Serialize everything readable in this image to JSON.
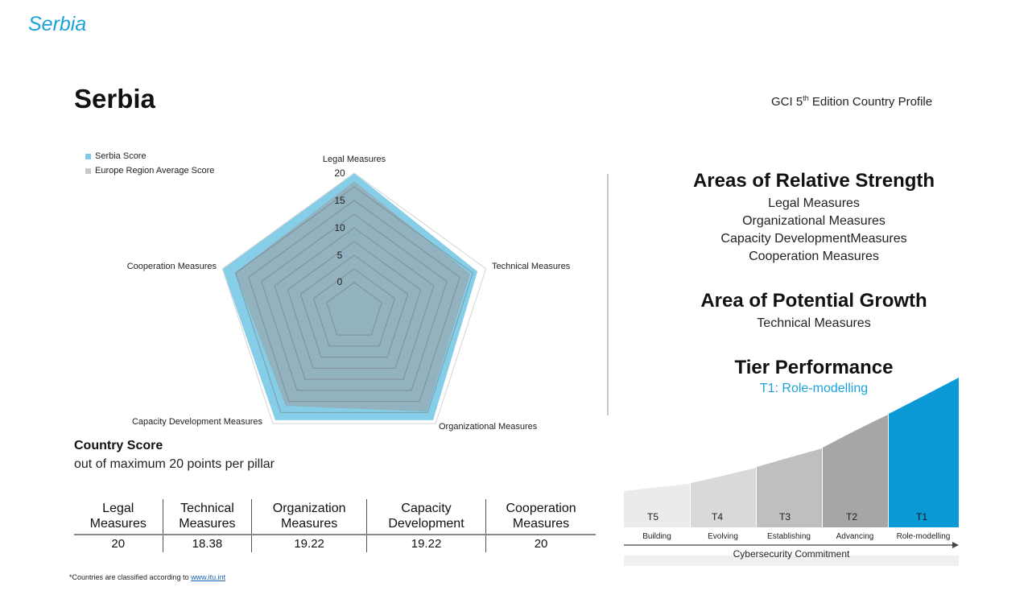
{
  "header": {
    "top_title": "Serbia",
    "page_title": "Serbia",
    "edition_prefix": "GCI 5",
    "edition_sup": "th",
    "edition_suffix": " Edition Country Profile"
  },
  "legend": {
    "serbia": "Serbia Score",
    "europe": "Europe Region Average Score"
  },
  "colors": {
    "accent": "#1aa3d9",
    "serbia_fill": "#7fcbe7",
    "europe_fill": "#9a9a9a",
    "tier_highlight": "#0b9ad5"
  },
  "chart_data": {
    "type": "radar",
    "axes": [
      "Legal Measures",
      "Technical Measures",
      "Organizational Measures",
      "Capacity Development Measures",
      "Cooperation Measures"
    ],
    "ticks": [
      0,
      5,
      10,
      15,
      20
    ],
    "range": [
      0,
      20
    ],
    "series": [
      {
        "name": "Serbia Score",
        "values": [
          20,
          18.38,
          19.22,
          19.22,
          20
        ]
      },
      {
        "name": "Europe Region Average Score",
        "values": [
          18.5,
          17,
          17.3,
          16,
          17.6
        ]
      }
    ]
  },
  "strengths": {
    "title": "Areas of Relative Strength",
    "items": [
      "Legal Measures",
      "Organizational Measures",
      "Capacity DevelopmentMeasures",
      "Cooperation Measures"
    ]
  },
  "growth": {
    "title": "Area of Potential Growth",
    "items": [
      "Technical Measures"
    ]
  },
  "tier": {
    "title": "Tier Performance",
    "subtitle": "T1: Role-modelling",
    "levels": [
      {
        "code": "T5",
        "label": "Building",
        "color": "#ebebeb"
      },
      {
        "code": "T4",
        "label": "Evolving",
        "color": "#d9d9d9"
      },
      {
        "code": "T3",
        "label": "Establishing",
        "color": "#bfbfbf"
      },
      {
        "code": "T2",
        "label": "Advancing",
        "color": "#a6a6a6"
      },
      {
        "code": "T1",
        "label": "Role-modelling",
        "color": "#0b9ad5"
      }
    ],
    "axis_label": "Cybersecurity Commitment"
  },
  "country_score": {
    "title": "Country Score",
    "subtitle": "out of maximum 20 points per pillar",
    "headers": [
      [
        "Legal",
        "Measures"
      ],
      [
        "Technical",
        "Measures"
      ],
      [
        "Organization",
        "Measures"
      ],
      [
        "Capacity",
        "Development"
      ],
      [
        "Cooperation",
        "Measures"
      ]
    ],
    "values": [
      "20",
      "18.38",
      "19.22",
      "19.22",
      "20"
    ]
  },
  "footnote": {
    "text": "*Countries are classified according to ",
    "link": "www.itu.int"
  }
}
